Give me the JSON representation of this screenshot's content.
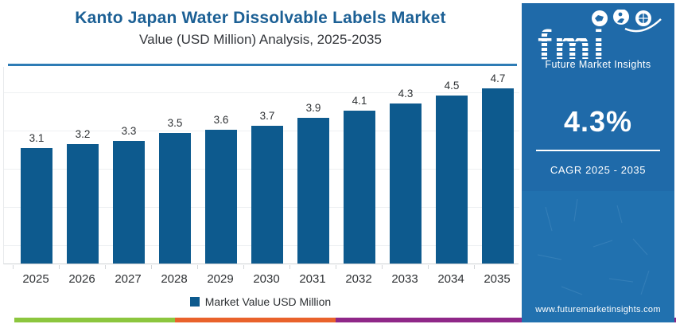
{
  "header": {
    "title_line1": "Kanto Japan Water Dissolvable Labels Market",
    "title_line2": "Value (USD Million) Analysis, 2025-2035"
  },
  "chart_data": {
    "type": "bar",
    "categories": [
      "2025",
      "2026",
      "2027",
      "2028",
      "2029",
      "2030",
      "2031",
      "2032",
      "2033",
      "2034",
      "2035"
    ],
    "values": [
      3.1,
      3.2,
      3.3,
      3.5,
      3.6,
      3.7,
      3.9,
      4.1,
      4.3,
      4.5,
      4.7
    ],
    "title": "Kanto Japan Water Dissolvable Labels Market Value (USD Million) Analysis, 2025-2035",
    "xlabel": "",
    "ylabel": "",
    "ylim": [
      0,
      5.3
    ],
    "grid": "horizontal-faint",
    "legend": {
      "position": "bottom-center",
      "label": "Market Value USD Million"
    },
    "bar_color": "#0d5a8e"
  },
  "sidebar": {
    "logo": {
      "text": "fmi",
      "subtext": "Future Market Insights",
      "icons": [
        "map-icon",
        "person-icon",
        "globe-icon"
      ]
    },
    "cagr": {
      "value": "4.3%",
      "label": "CAGR 2025 - 2035"
    },
    "website": "www.futuremarketinsights.com",
    "background_color": "#1f6aa9"
  },
  "footer_stripes": {
    "green": "#8cc63e",
    "orange": "#e9622b",
    "purple": "#8f2788"
  },
  "colors": {
    "title_blue": "#1c6095",
    "rule_blue": "#2e7cb5",
    "bar_blue": "#0d5a8e",
    "text_dark": "#2e3134"
  }
}
